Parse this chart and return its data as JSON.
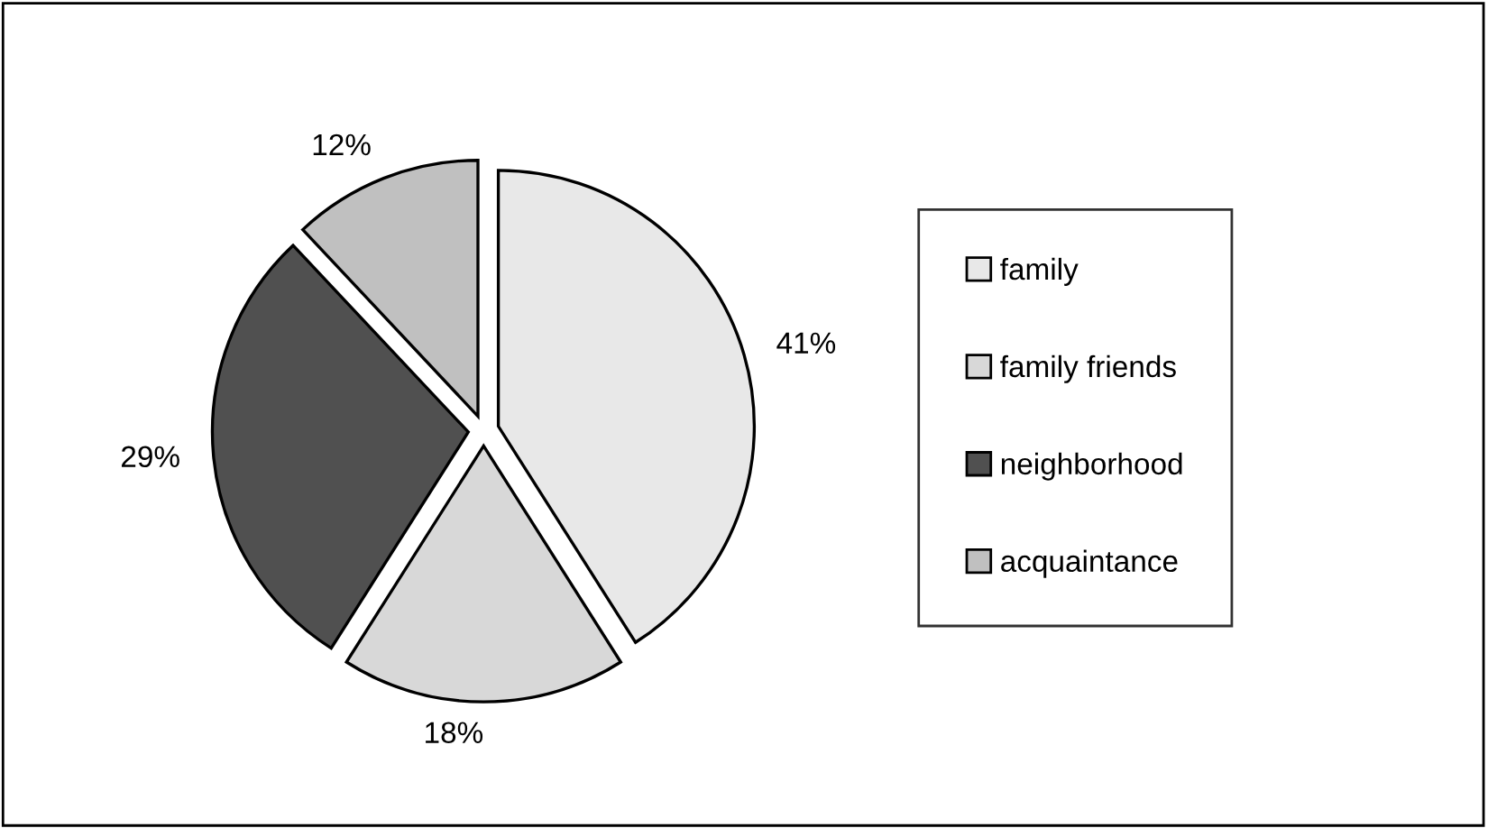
{
  "chart_data": {
    "type": "pie",
    "categories": [
      "family",
      "family friends",
      "neighborhood",
      "acquaintance"
    ],
    "values": [
      41,
      18,
      29,
      12
    ],
    "value_labels": [
      "41%",
      "18%",
      "29%",
      "12%"
    ],
    "colors": [
      "#e8e8e8",
      "#d8d8d8",
      "#505050",
      "#c0c0c0"
    ],
    "legend": "right"
  }
}
